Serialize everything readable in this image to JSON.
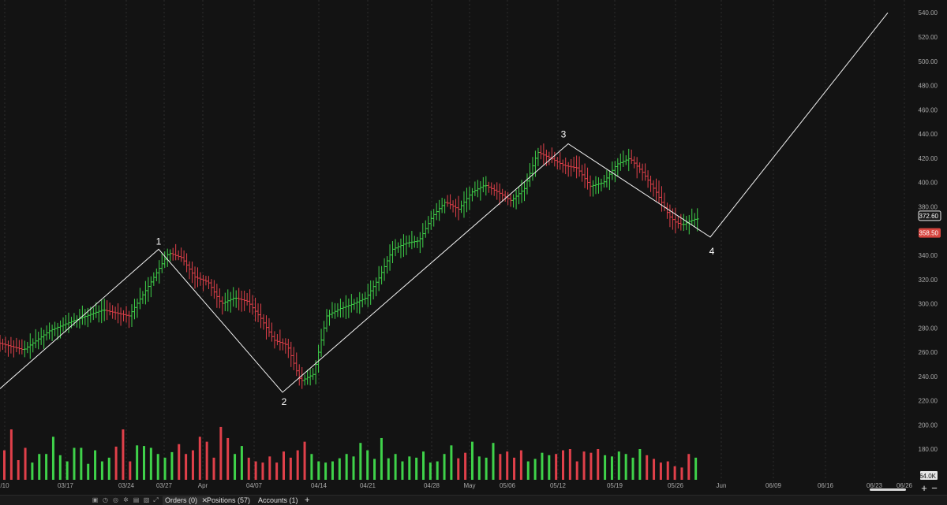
{
  "chart_data": {
    "type": "ohlc",
    "y_axis": {
      "ylim": [
        200,
        545
      ],
      "ticks": [
        "200.00",
        "220.00",
        "240.00",
        "260.00",
        "280.00",
        "300.00",
        "320.00",
        "340.00",
        "360.00",
        "380.00",
        "400.00",
        "420.00",
        "440.00",
        "460.00",
        "480.00",
        "500.00",
        "520.00",
        "540.00"
      ]
    },
    "volume_axis": {
      "ticks": [
        "180.00",
        "64.0K"
      ]
    },
    "x_axis": {
      "labels": [
        "/10",
        "03/17",
        "03/24",
        "03/27",
        "Apr",
        "04/07",
        "04/14",
        "04/21",
        "04/28",
        "May",
        "05/06",
        "05/12",
        "05/19",
        "05/26",
        "Jun",
        "06/09",
        "06/16",
        "06/23",
        "06/26"
      ]
    },
    "price_badges": [
      {
        "value": "372.60",
        "style": "current"
      },
      {
        "value": "358.50",
        "style": "down"
      }
    ],
    "wave_points": [
      {
        "label": "",
        "date": "03/10",
        "price": 230
      },
      {
        "label": "1",
        "date": "03/26",
        "price": 345
      },
      {
        "label": "2",
        "date": "04/08",
        "price": 227
      },
      {
        "label": "3",
        "date": "05/12",
        "price": 432
      },
      {
        "label": "4",
        "date": "05/28",
        "price": 355
      },
      {
        "label": "",
        "date": "06/26",
        "price": 540
      }
    ],
    "price_path": [
      [
        0,
        268
      ],
      [
        4,
        262
      ],
      [
        8,
        278
      ],
      [
        12,
        287
      ],
      [
        16,
        295
      ],
      [
        20,
        290
      ],
      [
        23,
        315
      ],
      [
        26,
        342
      ],
      [
        28,
        338
      ],
      [
        30,
        322
      ],
      [
        32,
        318
      ],
      [
        34,
        300
      ],
      [
        36,
        305
      ],
      [
        38,
        302
      ],
      [
        40,
        288
      ],
      [
        42,
        270
      ],
      [
        44,
        266
      ],
      [
        46,
        236
      ],
      [
        48,
        242
      ],
      [
        50,
        290
      ],
      [
        52,
        296
      ],
      [
        54,
        300
      ],
      [
        56,
        305
      ],
      [
        58,
        322
      ],
      [
        60,
        345
      ],
      [
        62,
        350
      ],
      [
        64,
        352
      ],
      [
        66,
        372
      ],
      [
        68,
        384
      ],
      [
        70,
        378
      ],
      [
        72,
        392
      ],
      [
        74,
        398
      ],
      [
        76,
        392
      ],
      [
        78,
        385
      ],
      [
        80,
        395
      ],
      [
        82,
        425
      ],
      [
        84,
        420
      ],
      [
        86,
        414
      ],
      [
        88,
        412
      ],
      [
        90,
        397
      ],
      [
        92,
        400
      ],
      [
        94,
        415
      ],
      [
        96,
        420
      ],
      [
        98,
        408
      ],
      [
        100,
        392
      ],
      [
        102,
        372
      ],
      [
        103,
        367
      ],
      [
        104,
        365
      ],
      [
        105,
        368
      ],
      [
        106,
        370
      ]
    ],
    "volume_bars": [
      48,
      82,
      32,
      52,
      28,
      42,
      42,
      70,
      40,
      30,
      52,
      52,
      26,
      48,
      30,
      36,
      54,
      82,
      30,
      56,
      55,
      52,
      42,
      36,
      45,
      58,
      42,
      48,
      70,
      62,
      36,
      86,
      68,
      42,
      55,
      36,
      30,
      28,
      38,
      28,
      46,
      36,
      48,
      62,
      42,
      30,
      28,
      30,
      35,
      42,
      38,
      60,
      48,
      34,
      68,
      35,
      42,
      30,
      38,
      36,
      46,
      28,
      30,
      42,
      56,
      35,
      44,
      62,
      38,
      36,
      60,
      42,
      46,
      36,
      48,
      30,
      34,
      44,
      40,
      42,
      48,
      50,
      30,
      46,
      44,
      50,
      40,
      38,
      46,
      42,
      36,
      50,
      40,
      34,
      28,
      30,
      22,
      20,
      42,
      36
    ]
  },
  "bottom_bar": {
    "tabs": [
      {
        "label": "Orders (0)",
        "active": true,
        "closable": true
      },
      {
        "label": "Positions (57)",
        "active": false
      },
      {
        "label": "Accounts (1)",
        "active": false
      }
    ],
    "add_tab": "+",
    "zoom_in": "+",
    "zoom_out": "−"
  },
  "colors": {
    "background": "#131313",
    "up": "#3fd24a",
    "down": "#e0404a",
    "wave_line": "#f2f2f2",
    "grid": "#2c2c2c",
    "axis_text": "#a8a8a8",
    "badge_current": "#e8e8e8",
    "badge_down": "#d7453f"
  }
}
